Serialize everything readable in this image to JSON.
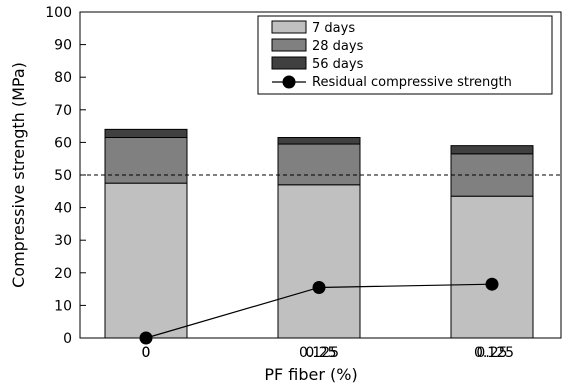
{
  "chart_data": {
    "type": "bar",
    "stacked": true,
    "categories": [
      "0",
      "0.125",
      "0.25"
    ],
    "x_tick_labels": [
      "0",
      "0.125",
      "0.25"
    ],
    "series": [
      {
        "name": "7 days",
        "color": "#c0c0c0",
        "values": [
          47.5,
          47,
          43.5
        ]
      },
      {
        "name": "28 days",
        "color": "#808080",
        "values": [
          14,
          12.5,
          13
        ]
      },
      {
        "name": "56 days",
        "color": "#404040",
        "values": [
          2.5,
          2,
          2.5
        ]
      }
    ],
    "line_series": {
      "name": "Residual compressive strength",
      "color": "#000000",
      "values": [
        0,
        15.5,
        16.5
      ]
    },
    "reference_line": {
      "y": 50,
      "style": "dashed"
    },
    "xlabel": "PF fiber (%)",
    "ylabel": "Compressive strength (MPa)",
    "ylim": [
      0,
      100
    ],
    "y_ticks": [
      0,
      10,
      20,
      30,
      40,
      50,
      60,
      70,
      80,
      90,
      100
    ],
    "legend_position": "top-right",
    "grid": false
  }
}
